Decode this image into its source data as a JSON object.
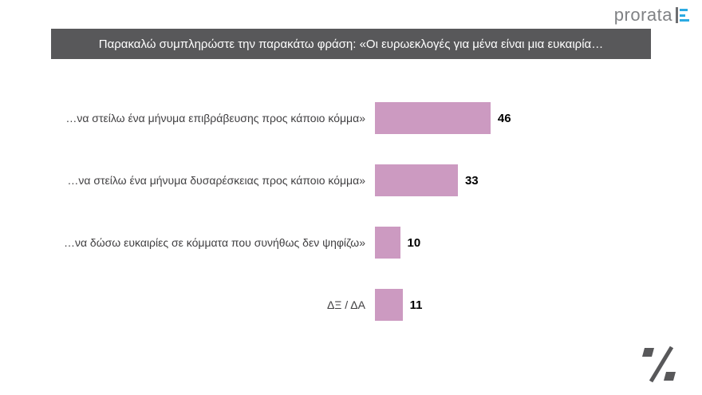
{
  "logo": {
    "text": "prorata",
    "icon": "prorata-bars-icon",
    "icon_color": "#2caae2",
    "text_color": "#808285"
  },
  "header": {
    "title": "Παρακαλώ συμπληρώστε την παρακάτω φράση: «Οι ευρωεκλογές για μένα είναι μια ευκαιρία…",
    "background": "#58585a",
    "text_color": "#ffffff"
  },
  "chart_data": {
    "type": "bar",
    "orientation": "horizontal",
    "title": "Παρακαλώ συμπληρώστε την παρακάτω φράση: «Οι ευρωεκλογές για μένα είναι μια ευκαιρία…",
    "categories": [
      "…να στείλω ένα μήνυμα επιβράβευσης προς κάποιο κόμμα»",
      "…να στείλω ένα μήνυμα δυσαρέσκειας προς κάποιο κόμμα»",
      "…να δώσω ευκαιρίες σε κόμματα που συνήθως δεν ψηφίζω»",
      "ΔΞ / ΔΑ"
    ],
    "values": [
      46,
      33,
      10,
      11
    ],
    "xlim": [
      0,
      50
    ],
    "bar_color": "#cc9ac1",
    "value_label_color": "#000000",
    "grid": false,
    "legend": false,
    "value_labels_shown": true
  },
  "footer": {
    "percent_mark_color": "#58585a"
  }
}
